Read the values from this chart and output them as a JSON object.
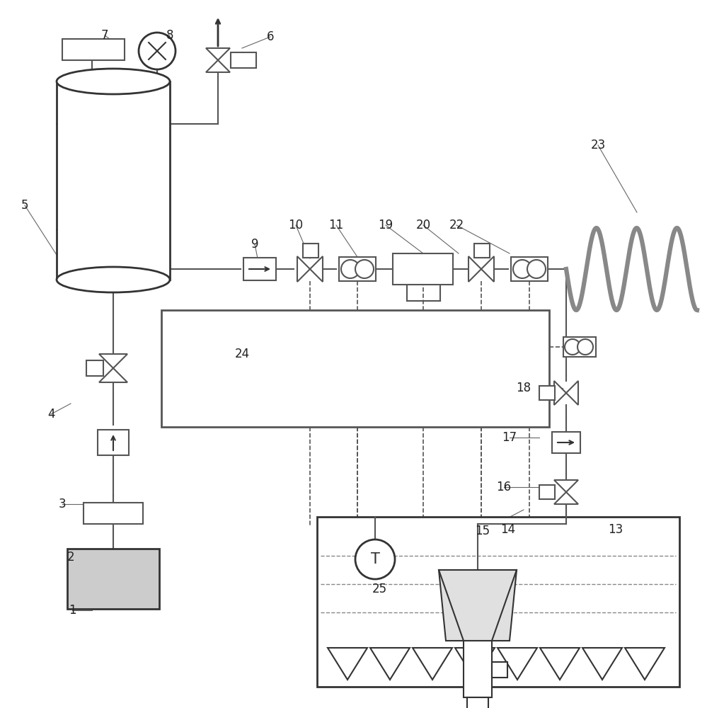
{
  "bg": "#ffffff",
  "lc": "#555555",
  "dc": "#333333",
  "coil_color": "#888888",
  "fig_w": 9.99,
  "fig_h": 10.0,
  "dpi": 100
}
